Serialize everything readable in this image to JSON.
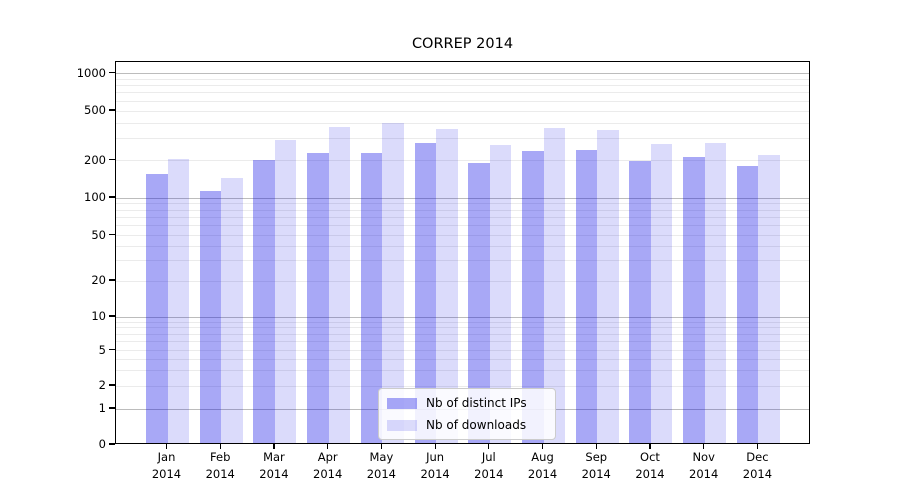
{
  "chart_data": {
    "type": "bar",
    "title": "CORREP 2014",
    "x": {
      "months": [
        "Jan",
        "Feb",
        "Mar",
        "Apr",
        "May",
        "Jun",
        "Jul",
        "Aug",
        "Sep",
        "Oct",
        "Nov",
        "Dec"
      ],
      "year": "2014"
    },
    "categories": [
      "Jan 2014",
      "Feb 2014",
      "Mar 2014",
      "Apr 2014",
      "May 2014",
      "Jun 2014",
      "Jul 2014",
      "Aug 2014",
      "Sep 2014",
      "Oct 2014",
      "Nov 2014",
      "Dec 2014"
    ],
    "y_axis": {
      "scale": "symlog",
      "ticks": [
        0,
        1,
        2,
        5,
        10,
        20,
        50,
        100,
        200,
        500,
        1000
      ],
      "ylim": [
        0,
        1250
      ]
    },
    "series": [
      {
        "name": "Nb of distinct IPs",
        "color": "rgba(0,0,230,0.34)",
        "color_hex_on_white": "#a8a8f6",
        "values": [
          150,
          110,
          195,
          220,
          220,
          265,
          185,
          230,
          235,
          190,
          205,
          175
        ]
      },
      {
        "name": "Nb of downloads",
        "color": "rgba(0,0,230,0.14)",
        "color_hex_on_white": "#dbdbfb",
        "values": [
          200,
          140,
          280,
          360,
          385,
          345,
          255,
          355,
          340,
          260,
          265,
          215
        ]
      }
    ],
    "legend": {
      "position": "lower-center",
      "entries": [
        "Nb of distinct IPs",
        "Nb of downloads"
      ]
    },
    "grid": {
      "major_line_color": "#bcbcbc",
      "minor_line_color": "#ebebeb",
      "major_at": [
        1,
        10,
        100,
        1000
      ]
    }
  }
}
